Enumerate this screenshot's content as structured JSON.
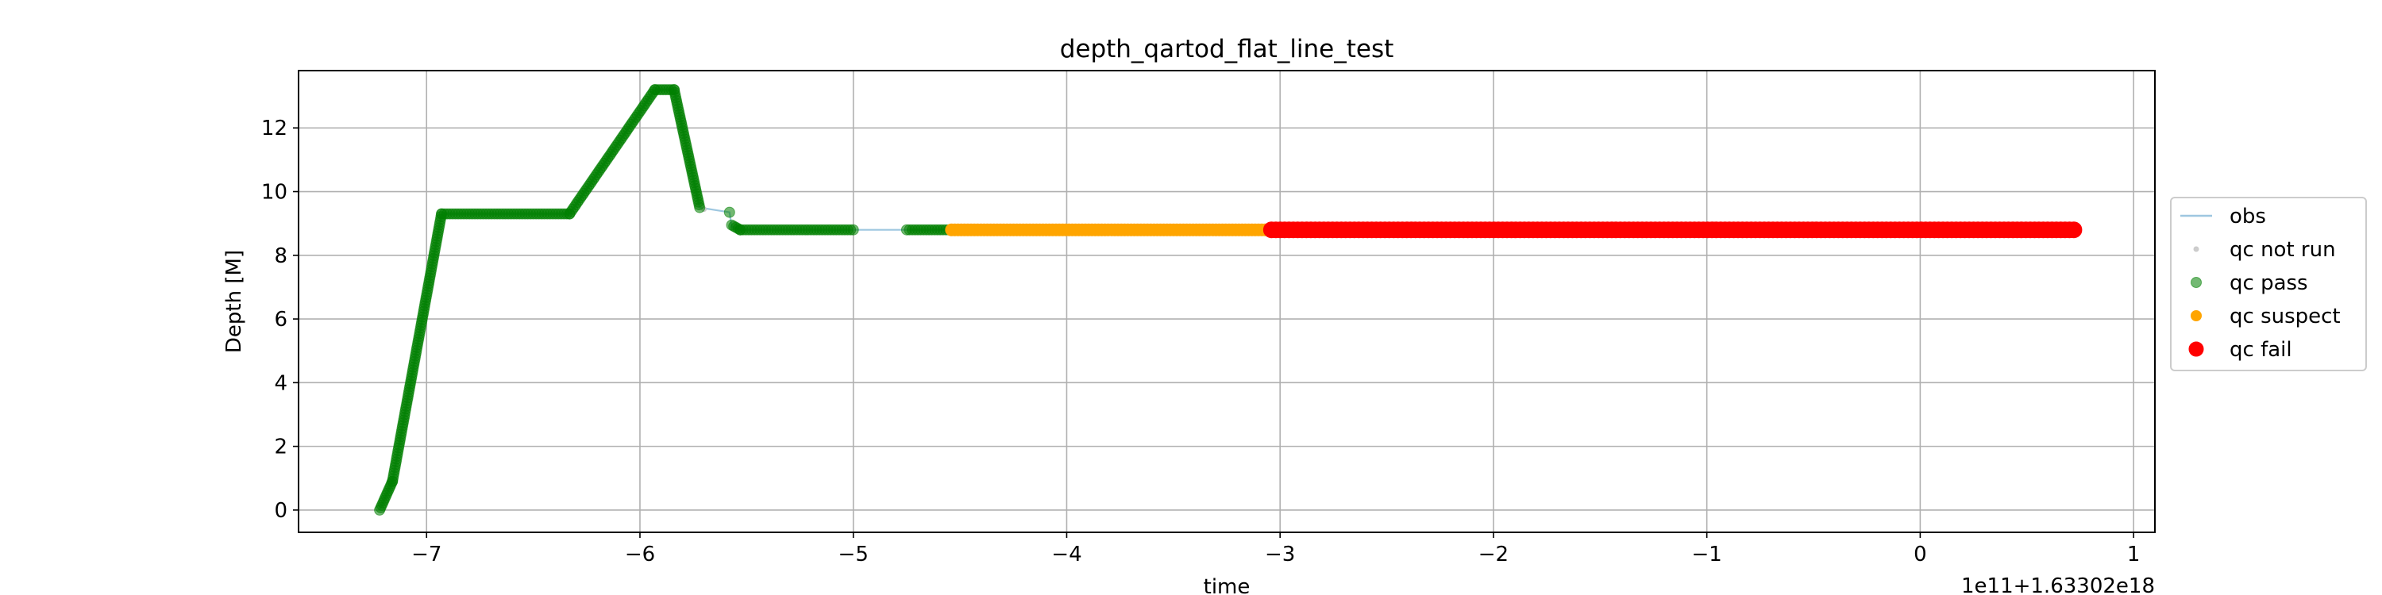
{
  "chart_data": {
    "type": "scatter",
    "title": "depth_qartod_flat_line_test",
    "xlabel": "time",
    "ylabel": "Depth [M]",
    "x_offset_label": "1e11+1.63302e18",
    "xlim": [
      -7.6,
      1.1
    ],
    "ylim": [
      -0.7,
      13.8
    ],
    "grid": true,
    "x_ticks": [
      -7,
      -6,
      -5,
      -4,
      -3,
      -2,
      -1,
      0,
      1
    ],
    "x_tick_labels": [
      "−7",
      "−6",
      "−5",
      "−4",
      "−3",
      "−2",
      "−1",
      "0",
      "1"
    ],
    "y_ticks": [
      0,
      2,
      4,
      6,
      8,
      10,
      12
    ],
    "y_tick_labels": [
      "0",
      "2",
      "4",
      "6",
      "8",
      "10",
      "12"
    ],
    "legend_position": "right",
    "colors": {
      "obs": "#9ec7e0",
      "qc_not_run": "#c8c8c8",
      "qc_pass": "#008000",
      "qc_suspect": "#ffa500",
      "qc_fail": "#ff0000"
    },
    "series": [
      {
        "name": "obs",
        "kind": "line",
        "points": [
          [
            -7.22,
            0
          ],
          [
            -7.16,
            0.9
          ],
          [
            -6.93,
            9.3
          ],
          [
            -6.33,
            9.3
          ],
          [
            -5.93,
            13.2
          ],
          [
            -5.84,
            13.2
          ],
          [
            -5.72,
            9.5
          ],
          [
            -5.58,
            9.35
          ],
          [
            -5.57,
            8.9
          ],
          [
            -5.53,
            8.8
          ],
          [
            -5.0,
            8.8
          ],
          [
            -4.75,
            8.8
          ],
          [
            -4.54,
            8.8
          ],
          [
            -3.02,
            8.8
          ],
          [
            0.72,
            8.8
          ]
        ]
      },
      {
        "name": "qc not run",
        "kind": "scatter",
        "points": [
          [
            -5.7,
            9.45
          ]
        ]
      },
      {
        "name": "qc pass",
        "kind": "scatter",
        "segments": [
          {
            "x_start": -7.22,
            "y_start": 0,
            "x_end": -7.16,
            "y_end": 0.9
          },
          {
            "x_start": -7.16,
            "y_start": 0.9,
            "x_end": -6.93,
            "y_end": 9.3
          },
          {
            "x_start": -6.93,
            "y_start": 9.3,
            "x_end": -6.33,
            "y_end": 9.3
          },
          {
            "x_start": -6.33,
            "y_start": 9.3,
            "x_end": -5.93,
            "y_end": 13.2
          },
          {
            "x_start": -5.93,
            "y_start": 13.2,
            "x_end": -5.84,
            "y_end": 13.2
          },
          {
            "x_start": -5.84,
            "y_start": 13.2,
            "x_end": -5.72,
            "y_end": 9.5
          },
          {
            "x_start": -5.57,
            "y_start": 8.95,
            "x_end": -5.53,
            "y_end": 8.8
          },
          {
            "x_start": -5.53,
            "y_start": 8.8,
            "x_end": -5.0,
            "y_end": 8.8
          },
          {
            "x_start": -4.75,
            "y_start": 8.8,
            "x_end": -4.54,
            "y_end": 8.8
          }
        ],
        "points": [
          [
            -5.58,
            9.35
          ]
        ]
      },
      {
        "name": "qc suspect",
        "kind": "scatter",
        "segments": [
          {
            "x_start": -4.54,
            "y_start": 8.8,
            "x_end": -3.04,
            "y_end": 8.8
          }
        ]
      },
      {
        "name": "qc fail",
        "kind": "scatter",
        "segments": [
          {
            "x_start": -3.04,
            "y_start": 8.8,
            "x_end": 0.72,
            "y_end": 8.8
          }
        ]
      }
    ],
    "legend": [
      "obs",
      "qc not run",
      "qc pass",
      "qc suspect",
      "qc fail"
    ]
  }
}
